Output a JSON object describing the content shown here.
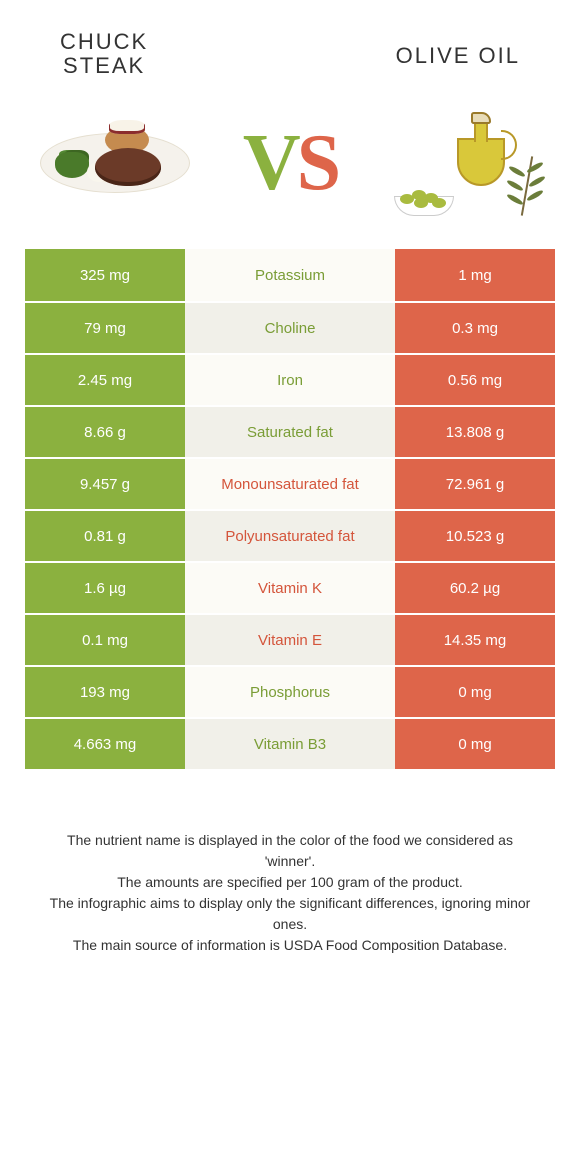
{
  "header": {
    "left_title_l1": "CHUCK",
    "left_title_l2": "STEAK",
    "right_title": "OLIVE OIL"
  },
  "vs": {
    "v": "V",
    "s": "S"
  },
  "colors": {
    "left": "#8bb13f",
    "right": "#de654a",
    "mid_light": "#fcfbf6",
    "mid_dark": "#f1f0e9",
    "text_left": "#7a9d36",
    "text_right": "#d4553b"
  },
  "table": {
    "rows": [
      {
        "left": "325 mg",
        "label": "Potassium",
        "right": "1 mg",
        "winner": "left",
        "alt": false
      },
      {
        "left": "79 mg",
        "label": "Choline",
        "right": "0.3 mg",
        "winner": "left",
        "alt": true
      },
      {
        "left": "2.45 mg",
        "label": "Iron",
        "right": "0.56 mg",
        "winner": "left",
        "alt": false
      },
      {
        "left": "8.66 g",
        "label": "Saturated fat",
        "right": "13.808 g",
        "winner": "left",
        "alt": true
      },
      {
        "left": "9.457 g",
        "label": "Monounsaturated fat",
        "right": "72.961 g",
        "winner": "right",
        "alt": false
      },
      {
        "left": "0.81 g",
        "label": "Polyunsaturated fat",
        "right": "10.523 g",
        "winner": "right",
        "alt": true
      },
      {
        "left": "1.6 µg",
        "label": "Vitamin K",
        "right": "60.2 µg",
        "winner": "right",
        "alt": false
      },
      {
        "left": "0.1 mg",
        "label": "Vitamin E",
        "right": "14.35 mg",
        "winner": "right",
        "alt": true
      },
      {
        "left": "193 mg",
        "label": "Phosphorus",
        "right": "0 mg",
        "winner": "left",
        "alt": false
      },
      {
        "left": "4.663 mg",
        "label": "Vitamin B3",
        "right": "0 mg",
        "winner": "left",
        "alt": true
      }
    ]
  },
  "footer": {
    "line1": "The nutrient name is displayed in the color of the food we considered as 'winner'.",
    "line2": "The amounts are specified per 100 gram of the product.",
    "line3": "The infographic aims to display only the significant differences, ignoring minor ones.",
    "line4": "The main source of information is USDA Food Composition Database."
  }
}
